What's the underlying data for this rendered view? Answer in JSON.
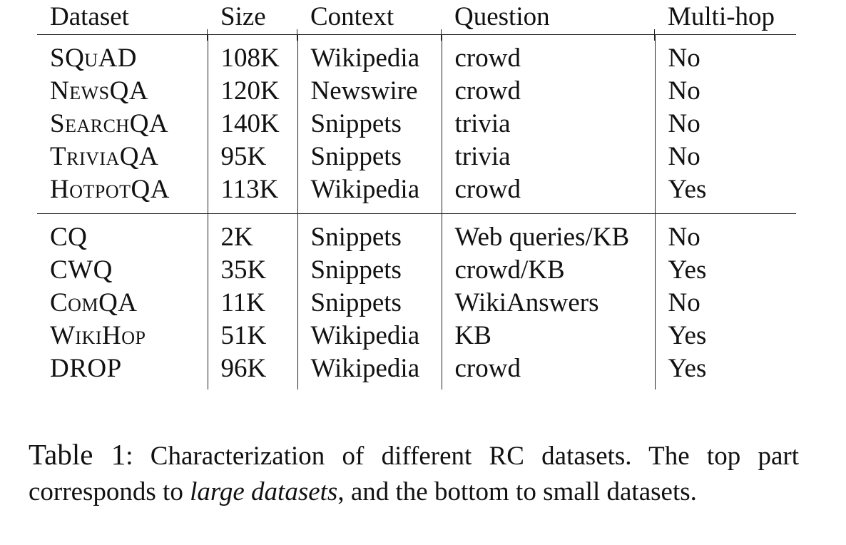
{
  "table": {
    "headers": [
      "Dataset",
      "Size",
      "Context",
      "Question",
      "Multi-hop"
    ],
    "large_rows": [
      [
        "SQuAD",
        "108K",
        "Wikipedia",
        "crowd",
        "No"
      ],
      [
        "NewsQA",
        "120K",
        "Newswire",
        "crowd",
        "No"
      ],
      [
        "SearchQA",
        "140K",
        "Snippets",
        "trivia",
        "No"
      ],
      [
        "TriviaQA",
        "95K",
        "Snippets",
        "trivia",
        "No"
      ],
      [
        "HotpotQA",
        "113K",
        "Wikipedia",
        "crowd",
        "Yes"
      ]
    ],
    "small_rows": [
      [
        "CQ",
        "2K",
        "Snippets",
        "Web queries/KB",
        "No"
      ],
      [
        "CWQ",
        "35K",
        "Snippets",
        "crowd/KB",
        "Yes"
      ],
      [
        "ComQA",
        "11K",
        "Snippets",
        "WikiAnswers",
        "No"
      ],
      [
        "WikiHop",
        "51K",
        "Wikipedia",
        "KB",
        "Yes"
      ],
      [
        "DROP",
        "96K",
        "Wikipedia",
        "crowd",
        "Yes"
      ]
    ]
  },
  "caption": {
    "label": "Table 1",
    "text_before": ": Characterization of different RC datasets. The top part corresponds to ",
    "emphasis": "large datasets",
    "text_after": ", and the bottom to small datasets."
  }
}
